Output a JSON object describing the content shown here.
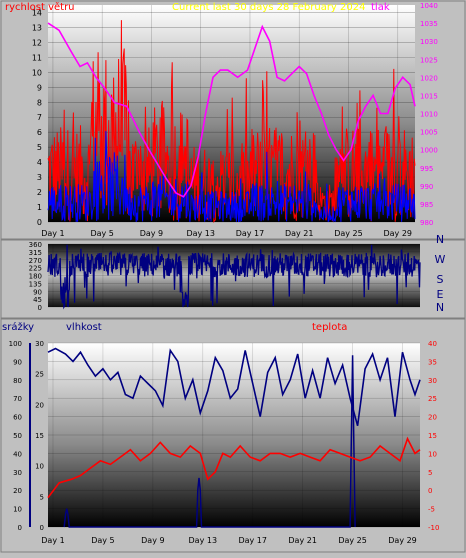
{
  "colors": {
    "wind": "#ff0000",
    "wind_avg": "#0000ff",
    "pressure": "#ff00ff",
    "direction": "#000080",
    "humidity": "#000080",
    "temperature": "#ff0000",
    "rain": "#000080",
    "title": "#ffff00",
    "tick": "#000000",
    "right_axis_temp": "#ff0000",
    "right_axis_press": "#ff00ff"
  },
  "chart_data": [
    {
      "type": "line",
      "title": "Current last 30 days 28 February 2024",
      "ylabel": "rychlost větru",
      "y2label": "tlak",
      "ylim": [
        0,
        14.5
      ],
      "y2lim": [
        980,
        1040
      ],
      "yticks": [
        0,
        1,
        2,
        3,
        4,
        5,
        6,
        7,
        8,
        9,
        10,
        11,
        12,
        13,
        14
      ],
      "y2ticks": [
        980,
        985,
        990,
        995,
        1000,
        1005,
        1010,
        1015,
        1020,
        1025,
        1030,
        1035,
        1040
      ],
      "x_tick_labels": [
        "Day 1",
        "Day 5",
        "Day 9",
        "Day 13",
        "Day 17",
        "Day 21",
        "Day 25",
        "Day 29"
      ],
      "x_tick_days": [
        1,
        5,
        9,
        13,
        17,
        21,
        25,
        29
      ],
      "xlim": [
        0.6,
        30.4
      ],
      "pressure_series": {
        "name": "tlak",
        "x": [
          0.6,
          1.5,
          2.5,
          3.2,
          3.8,
          4.5,
          5.2,
          6.0,
          7.0,
          8.0,
          8.8,
          9.5,
          10.2,
          11.0,
          11.6,
          12.2,
          12.8,
          13.4,
          14.0,
          14.6,
          15.2,
          16.0,
          16.8,
          17.4,
          18.0,
          18.6,
          19.2,
          19.8,
          20.4,
          21.0,
          21.6,
          22.2,
          22.8,
          23.4,
          24.0,
          24.6,
          25.2,
          25.8,
          26.4,
          27.0,
          27.6,
          28.2,
          28.8,
          29.4,
          30.0,
          30.4
        ],
        "values": [
          1035,
          1033,
          1027,
          1023,
          1024,
          1020,
          1017,
          1013,
          1012,
          1005,
          1000,
          996,
          992,
          988,
          987,
          990,
          998,
          1010,
          1020,
          1022,
          1022,
          1020,
          1022,
          1028,
          1034,
          1030,
          1020,
          1019,
          1021,
          1023,
          1021,
          1015,
          1010,
          1004,
          1000,
          997,
          1000,
          1008,
          1012,
          1015,
          1010,
          1010,
          1017,
          1020,
          1018,
          1012
        ]
      },
      "wind_note": "gust and average wind shown as dense daily traces"
    },
    {
      "type": "scatter",
      "yticks": [
        0,
        45,
        90,
        135,
        180,
        225,
        270,
        315,
        360
      ],
      "ylim": [
        0,
        360
      ],
      "right_labels": [
        "N",
        "W",
        "S",
        "E",
        "N"
      ],
      "x_tick_days": [
        1,
        5,
        9,
        13,
        17,
        21,
        25,
        29
      ],
      "xlim": [
        0.6,
        30.4
      ]
    },
    {
      "type": "line",
      "labels": {
        "rain": "srážky",
        "humidity": "vlhkost",
        "temperature": "teplota"
      },
      "humidity_ylim": [
        0,
        100
      ],
      "humidity_ticks": [
        0,
        10,
        20,
        30,
        40,
        50,
        60,
        70,
        80,
        90,
        100
      ],
      "rain_ticks": [
        0,
        5,
        10,
        15,
        20,
        25,
        30
      ],
      "rain_ylim": [
        0,
        30
      ],
      "temp_ylim": [
        -10,
        40
      ],
      "temp_ticks": [
        -10,
        -5,
        0,
        5,
        10,
        15,
        20,
        25,
        30,
        35,
        40
      ],
      "x_tick_labels": [
        "Day 1",
        "Day 5",
        "Day 9",
        "Day 13",
        "Day 17",
        "Day 21",
        "Day 25",
        "Day 29"
      ],
      "x_tick_days": [
        1,
        5,
        9,
        13,
        17,
        21,
        25,
        29
      ],
      "xlim": [
        0.6,
        30.4
      ],
      "humidity_series": {
        "name": "vlhkost",
        "x": [
          0.6,
          1.2,
          2.0,
          2.6,
          3.2,
          3.8,
          4.4,
          5.0,
          5.6,
          6.2,
          6.8,
          7.4,
          8.0,
          8.6,
          9.2,
          9.8,
          10.4,
          11.0,
          11.6,
          12.2,
          12.8,
          13.4,
          14.0,
          14.6,
          15.2,
          15.8,
          16.4,
          17.0,
          17.6,
          18.2,
          18.8,
          19.4,
          20.0,
          20.6,
          21.2,
          21.8,
          22.4,
          23.0,
          23.6,
          24.2,
          24.8,
          25.4,
          26.0,
          26.6,
          27.2,
          27.8,
          28.4,
          29.0,
          29.6,
          30.0,
          30.4
        ],
        "values": [
          95,
          97,
          94,
          90,
          95,
          88,
          82,
          86,
          80,
          84,
          72,
          70,
          82,
          78,
          74,
          66,
          96,
          90,
          70,
          80,
          62,
          74,
          92,
          85,
          70,
          75,
          96,
          78,
          60,
          84,
          92,
          72,
          80,
          94,
          70,
          85,
          70,
          92,
          78,
          88,
          70,
          55,
          86,
          94,
          80,
          92,
          60,
          95,
          80,
          72,
          80
        ]
      },
      "temperature_series": {
        "name": "teplota",
        "x": [
          0.6,
          1.5,
          2.5,
          3.2,
          4.0,
          4.8,
          5.6,
          6.4,
          7.2,
          8.0,
          8.8,
          9.6,
          10.4,
          11.2,
          12.0,
          12.8,
          13.4,
          14.0,
          14.6,
          15.2,
          16.0,
          16.8,
          17.6,
          18.4,
          19.2,
          20.0,
          20.8,
          21.6,
          22.4,
          23.2,
          24.0,
          24.8,
          25.6,
          26.4,
          27.2,
          28.0,
          28.8,
          29.4,
          30.0,
          30.4
        ],
        "values": [
          -2,
          2,
          3,
          4,
          6,
          8,
          7,
          9,
          11,
          8,
          10,
          13,
          10,
          9,
          12,
          10,
          3,
          5,
          10,
          9,
          12,
          9,
          8,
          10,
          10,
          9,
          10,
          9,
          8,
          11,
          10,
          9,
          8,
          9,
          12,
          10,
          8,
          14,
          10,
          11
        ]
      },
      "rain_series": {
        "name": "srážky",
        "x": [
          1.9,
          2.0,
          2.1,
          2.2,
          2.3,
          12.5,
          12.6,
          12.7,
          12.8,
          12.9,
          24.8,
          24.9,
          25.0,
          25.1,
          25.2
        ],
        "values": [
          0,
          2,
          3,
          2,
          0,
          0,
          6,
          8,
          6,
          0,
          0,
          14,
          28,
          14,
          0
        ]
      }
    }
  ]
}
